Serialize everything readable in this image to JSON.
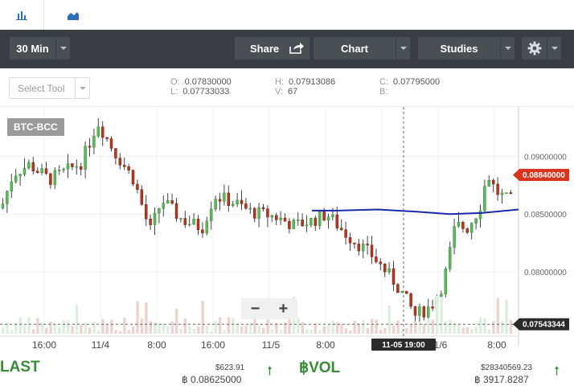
{
  "tabs": [
    {
      "name": "bar-chart-icon",
      "active": true
    },
    {
      "name": "area-chart-icon",
      "active": false
    }
  ],
  "toolbar": {
    "interval_label": "30 Min",
    "share_label": "Share",
    "chart_label": "Chart",
    "studies_label": "Studies"
  },
  "select_tool": {
    "label": "Select Tool"
  },
  "ohlc": {
    "o_label": "O:",
    "o_value": "0.07830000",
    "l_label": "L:",
    "l_value": "0.07733033",
    "h_label": "H:",
    "h_value": "0.07913086",
    "v_label": "V:",
    "v_value": "67",
    "c_label": "C:",
    "c_value": "0.07795000",
    "b_label": "B:",
    "b_value": ""
  },
  "chart_data": {
    "type": "candlestick",
    "symbol": "BTC-BCC",
    "y_ticks": [
      "0.09000000",
      "0.08500000",
      "0.08000000"
    ],
    "y_tick_values": [
      0.09,
      0.085,
      0.08
    ],
    "ylim": [
      0.0751,
      0.0943
    ],
    "x_ticks": [
      "16:00",
      "11/4",
      "8:00",
      "16:00",
      "11/5",
      "8:00",
      "1/6",
      "8:00"
    ],
    "crosshair_label": "11-05 19:00",
    "last_price_tag": "0.08840000",
    "crosshair_price_tag": "0.07543344",
    "moving_average_color": "#1a2aa8",
    "up_color": "#5cb85c",
    "down_color": "#b03a22",
    "last_tag_color": "#d9341d",
    "crosshair_tag_color": "#2b2b2b"
  },
  "footer": {
    "last_label": "LAST",
    "last_usd": "$623.91",
    "last_btc": "฿ 0.08625000",
    "vol_label": "฿VOL",
    "vol_usd": "$28340569.23",
    "vol_btc": "฿ 3917.8287"
  }
}
